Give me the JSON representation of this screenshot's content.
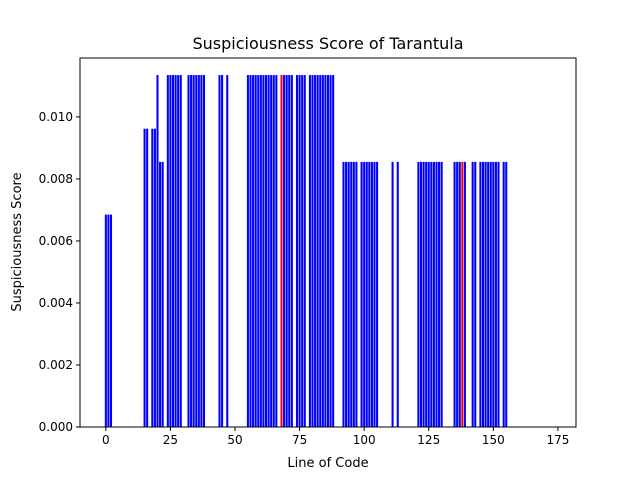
{
  "chart_data": {
    "type": "bar",
    "title": "Suspiciousness Score of Tarantula",
    "xlabel": "Line of Code",
    "ylabel": "Suspiciousness Score",
    "xlim": [
      -10,
      182
    ],
    "ylim": [
      0,
      0.0119
    ],
    "xticks": [
      0,
      25,
      50,
      75,
      100,
      125,
      150,
      175
    ],
    "xtick_labels": [
      "0",
      "25",
      "50",
      "75",
      "100",
      "125",
      "150",
      "175"
    ],
    "yticks": [
      0,
      0.002,
      0.004,
      0.006,
      0.008,
      0.01
    ],
    "ytick_labels": [
      "0.000",
      "0.002",
      "0.004",
      "0.006",
      "0.008",
      "0.010"
    ],
    "grid": false,
    "default_color": "#0000ff",
    "highlight_color": "#ff0000",
    "x": [
      0,
      1,
      2,
      15,
      16,
      18,
      19,
      20,
      21,
      22,
      24,
      25,
      26,
      27,
      28,
      29,
      32,
      33,
      34,
      35,
      36,
      37,
      38,
      44,
      45,
      47,
      55,
      56,
      57,
      58,
      59,
      60,
      61,
      62,
      63,
      64,
      65,
      66,
      68,
      69,
      70,
      71,
      72,
      74,
      75,
      76,
      77,
      79,
      80,
      81,
      82,
      83,
      84,
      85,
      86,
      87,
      88,
      92,
      93,
      94,
      95,
      96,
      97,
      99,
      100,
      101,
      102,
      103,
      104,
      105,
      111,
      113,
      121,
      122,
      123,
      124,
      125,
      126,
      127,
      128,
      129,
      130,
      135,
      136,
      137,
      138,
      139,
      142,
      143,
      145,
      146,
      147,
      148,
      149,
      150,
      151,
      152,
      154,
      155
    ],
    "values": [
      0.00685,
      0.00685,
      0.00685,
      0.00962,
      0.00962,
      0.00962,
      0.00962,
      0.01135,
      0.00855,
      0.00855,
      0.01135,
      0.01135,
      0.01135,
      0.01135,
      0.01135,
      0.01135,
      0.01135,
      0.01135,
      0.01135,
      0.01135,
      0.01135,
      0.01135,
      0.01135,
      0.01135,
      0.01135,
      0.01135,
      0.01135,
      0.01135,
      0.01135,
      0.01135,
      0.01135,
      0.01135,
      0.01135,
      0.01135,
      0.01135,
      0.01135,
      0.01135,
      0.01135,
      0.01135,
      0.01135,
      0.01135,
      0.01135,
      0.01135,
      0.01135,
      0.01135,
      0.01135,
      0.01135,
      0.01135,
      0.01135,
      0.01135,
      0.01135,
      0.01135,
      0.01135,
      0.01135,
      0.01135,
      0.01135,
      0.01135,
      0.00855,
      0.00855,
      0.00855,
      0.00855,
      0.00855,
      0.00855,
      0.00855,
      0.00855,
      0.00855,
      0.00855,
      0.00855,
      0.00855,
      0.00855,
      0.00855,
      0.00855,
      0.00855,
      0.00855,
      0.00855,
      0.00855,
      0.00855,
      0.00855,
      0.00855,
      0.00855,
      0.00855,
      0.00855,
      0.00855,
      0.00855,
      0.00855,
      0.00855,
      0.00855,
      0.00855,
      0.00855,
      0.00855,
      0.00855,
      0.00855,
      0.00855,
      0.00855,
      0.00855,
      0.00855,
      0.00855,
      0.00855,
      0.00855
    ],
    "highlighted_x": [
      68,
      138
    ]
  }
}
